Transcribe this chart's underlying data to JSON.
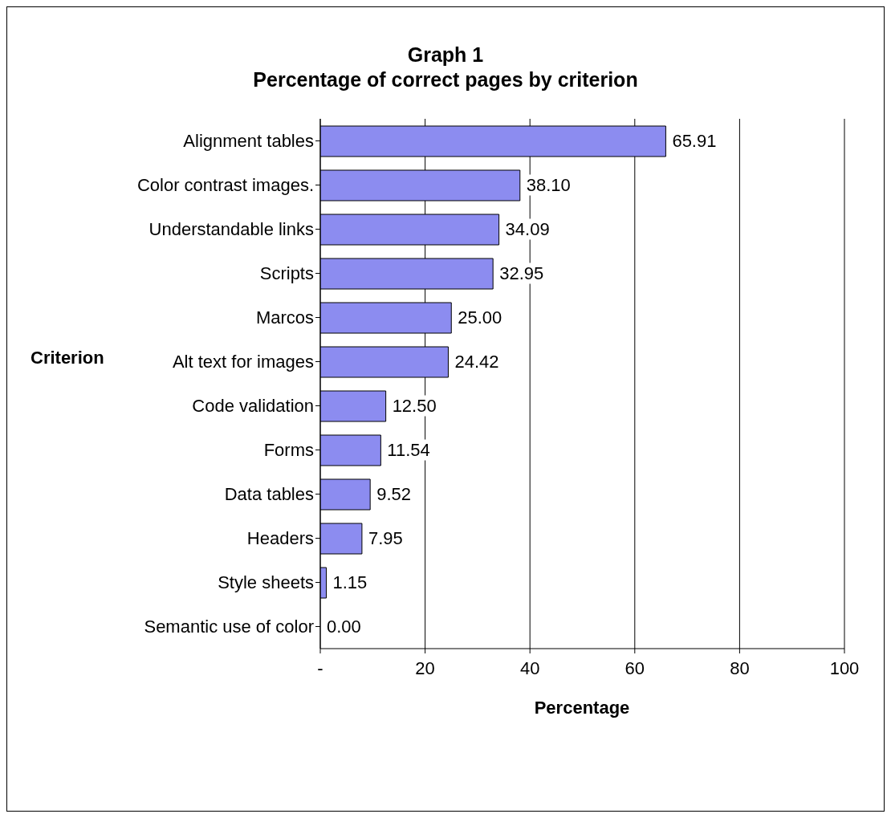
{
  "chart_data": {
    "type": "bar",
    "orientation": "horizontal",
    "title": "Graph 1",
    "subtitle": "Percentage of correct pages by criterion",
    "xlabel": "Percentage",
    "ylabel": "Criterion",
    "categories": [
      "Alignment tables",
      "Color contrast images.",
      "Understandable links",
      "Scripts",
      "Marcos",
      "Alt text for images",
      "Code validation",
      "Forms",
      "Data tables",
      "Headers",
      "Style sheets",
      "Semantic use of color"
    ],
    "values": [
      65.91,
      38.1,
      34.09,
      32.95,
      25.0,
      24.42,
      12.5,
      11.54,
      9.52,
      7.95,
      1.15,
      0.0
    ],
    "value_labels": [
      "65.91",
      "38.10",
      "34.09",
      "32.95",
      "25.00",
      "24.42",
      "12.50",
      "11.54",
      "9.52",
      "7.95",
      "1.15",
      "0.00"
    ],
    "color": "#8c8cf0",
    "xlim": [
      0,
      100
    ],
    "xticks": [
      {
        "value": 0,
        "label": "-"
      },
      20,
      40,
      60,
      80,
      100
    ],
    "grid": "x"
  }
}
